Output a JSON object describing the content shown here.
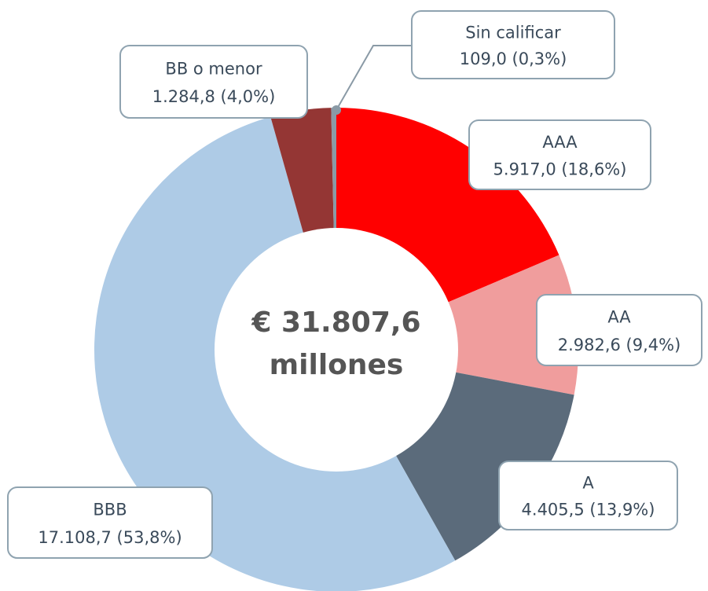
{
  "chart_data": {
    "type": "donut",
    "categories": [
      "AAA",
      "AA",
      "A",
      "BBB",
      "BB o menor",
      "Sin calificar"
    ],
    "values": [
      5917.0,
      2982.6,
      4405.5,
      17108.7,
      1284.8,
      109.0
    ],
    "value_labels": [
      "5.917,0 (18,6%)",
      "2.982,6 (9,4%)",
      "4.405,5 (13,9%)",
      "17.108,7 (53,8%)",
      "1.284,8 (4,0%)",
      "109,0 (0,3%)"
    ],
    "colors": [
      "#ff0000",
      "#f09d9d",
      "#5b6b7b",
      "#aecbe6",
      "#943634",
      "#8a9aa6"
    ],
    "center_text": "€ 31.807,6",
    "center_subtext": "millones"
  }
}
